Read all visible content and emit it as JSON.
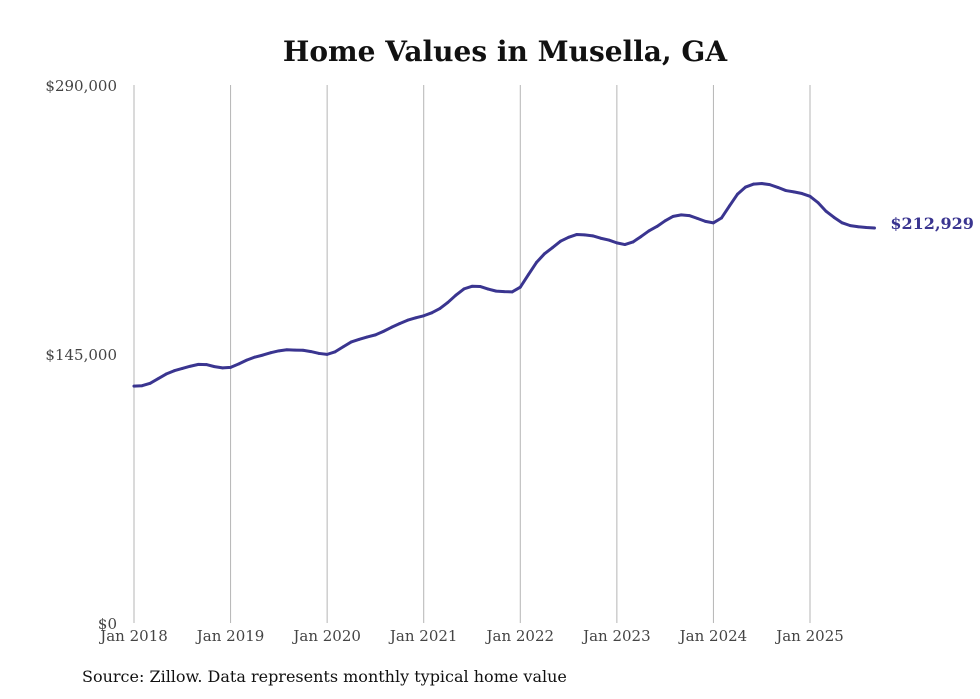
{
  "chart_data": {
    "type": "line",
    "title": "Home Values in Musella, GA",
    "xlabel": "",
    "ylabel": "",
    "ylim": [
      0,
      290000
    ],
    "yticks": [
      {
        "value": 0,
        "label": "$0"
      },
      {
        "value": 145000,
        "label": "$145,000"
      },
      {
        "value": 290000,
        "label": "$290,000"
      }
    ],
    "xticks": [
      {
        "value": 2018.0,
        "label": "Jan 2018"
      },
      {
        "value": 2019.0,
        "label": "Jan 2019"
      },
      {
        "value": 2020.0,
        "label": "Jan 2020"
      },
      {
        "value": 2021.0,
        "label": "Jan 2021"
      },
      {
        "value": 2022.0,
        "label": "Jan 2022"
      },
      {
        "value": 2023.0,
        "label": "Jan 2023"
      },
      {
        "value": 2024.0,
        "label": "Jan 2024"
      },
      {
        "value": 2025.0,
        "label": "Jan 2025"
      }
    ],
    "grid": "vertical",
    "series": [
      {
        "name": "Typical home value",
        "color": "#3a3590",
        "end_label": "$212,929",
        "x": [
          2018.0,
          2018.083,
          2018.167,
          2018.25,
          2018.333,
          2018.417,
          2018.5,
          2018.583,
          2018.667,
          2018.75,
          2018.833,
          2018.917,
          2019.0,
          2019.083,
          2019.167,
          2019.25,
          2019.333,
          2019.417,
          2019.5,
          2019.583,
          2019.667,
          2019.75,
          2019.833,
          2019.917,
          2020.0,
          2020.083,
          2020.167,
          2020.25,
          2020.333,
          2020.417,
          2020.5,
          2020.583,
          2020.667,
          2020.75,
          2020.833,
          2020.917,
          2021.0,
          2021.083,
          2021.167,
          2021.25,
          2021.333,
          2021.417,
          2021.5,
          2021.583,
          2021.667,
          2021.75,
          2021.833,
          2021.917,
          2022.0,
          2022.083,
          2022.167,
          2022.25,
          2022.333,
          2022.417,
          2022.5,
          2022.583,
          2022.667,
          2022.75,
          2022.833,
          2022.917,
          2023.0,
          2023.083,
          2023.167,
          2023.25,
          2023.333,
          2023.417,
          2023.5,
          2023.583,
          2023.667,
          2023.75,
          2023.833,
          2023.917,
          2024.0,
          2024.083,
          2024.167,
          2024.25,
          2024.333,
          2024.417,
          2024.5,
          2024.583,
          2024.667,
          2024.75,
          2024.833,
          2024.917,
          2025.0,
          2025.083,
          2025.167,
          2025.25,
          2025.333,
          2025.417,
          2025.5,
          2025.583,
          2025.667
        ],
        "values": [
          127700,
          127900,
          129200,
          131700,
          134200,
          136000,
          137200,
          138400,
          139400,
          139300,
          138200,
          137500,
          137800,
          139600,
          141700,
          143300,
          144400,
          145700,
          146700,
          147300,
          147100,
          147000,
          146300,
          145300,
          144800,
          146200,
          148900,
          151500,
          152900,
          154200,
          155300,
          157200,
          159400,
          161400,
          163200,
          164500,
          165600,
          167200,
          169500,
          172800,
          176700,
          180100,
          181500,
          181400,
          180000,
          178900,
          178600,
          178500,
          181000,
          187700,
          194300,
          199000,
          202300,
          205800,
          207900,
          209400,
          209200,
          208700,
          207400,
          206400,
          204900,
          204000,
          205400,
          208300,
          211400,
          213800,
          216800,
          219200,
          220000,
          219600,
          218100,
          216500,
          215700,
          218300,
          224900,
          231200,
          235000,
          236600,
          236900,
          236300,
          234800,
          233100,
          232400,
          231500,
          230000,
          226600,
          221900,
          218600,
          215700,
          214200,
          213600,
          213200,
          212929
        ]
      }
    ]
  },
  "source_note": "Source: Zillow. Data represents monthly typical home value"
}
